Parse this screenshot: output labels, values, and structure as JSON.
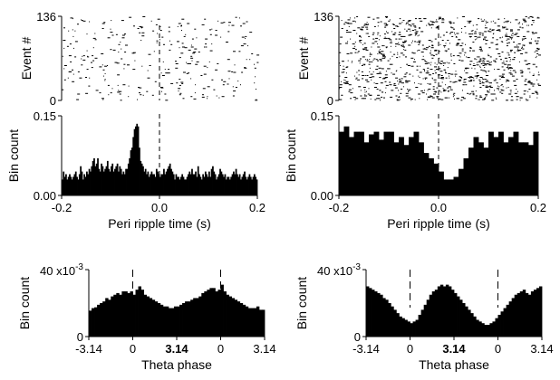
{
  "chart_data": [
    {
      "id": "raster_left",
      "type": "scatter",
      "ylabel": "Event #",
      "ylim": [
        0,
        136
      ],
      "xlim": [
        -0.2,
        0.2
      ],
      "yticks": [
        "0",
        "136"
      ],
      "marker": "vertical-tick",
      "event_marker_x": 0.0
    },
    {
      "id": "raster_right",
      "type": "scatter",
      "ylabel": "Event #",
      "ylim": [
        0,
        136
      ],
      "xlim": [
        -0.2,
        0.2
      ],
      "yticks": [
        "0",
        "136"
      ],
      "marker": "vertical-tick",
      "event_marker_x": 0.0
    },
    {
      "id": "psth_left",
      "type": "bar",
      "xlabel": "Peri ripple time (s)",
      "ylabel": "Bin count",
      "xlim": [
        -0.2,
        0.2
      ],
      "ylim": [
        0,
        0.15
      ],
      "xticks": [
        "-0.2",
        "0.0",
        "0.2"
      ],
      "yticks": [
        "0.00",
        "0.15"
      ],
      "bin_start": -0.2,
      "bin_width": 0.005,
      "event_marker_x": 0.0,
      "values": [
        0.03,
        0.045,
        0.035,
        0.04,
        0.03,
        0.035,
        0.04,
        0.035,
        0.03,
        0.035,
        0.04,
        0.045,
        0.035,
        0.03,
        0.04,
        0.055,
        0.045,
        0.03,
        0.04,
        0.035,
        0.045,
        0.04,
        0.05,
        0.045,
        0.055,
        0.065,
        0.07,
        0.055,
        0.06,
        0.07,
        0.05,
        0.045,
        0.06,
        0.055,
        0.045,
        0.05,
        0.055,
        0.065,
        0.05,
        0.045,
        0.055,
        0.06,
        0.045,
        0.05,
        0.055,
        0.06,
        0.045,
        0.055,
        0.05,
        0.04,
        0.045,
        0.04,
        0.05,
        0.05,
        0.06,
        0.07,
        0.085,
        0.09,
        0.11,
        0.125,
        0.13,
        0.135,
        0.13,
        0.09,
        0.065,
        0.06,
        0.055,
        0.045,
        0.05,
        0.04,
        0.045,
        0.035,
        0.04,
        0.045,
        0.04,
        0.04,
        0.035,
        0.05,
        0.045,
        0.04,
        0.035,
        0.04,
        0.04,
        0.05,
        0.04,
        0.045,
        0.05,
        0.055,
        0.06,
        0.05,
        0.045,
        0.04,
        0.03,
        0.04,
        0.035,
        0.035,
        0.03,
        0.035,
        0.04,
        0.035,
        0.03,
        0.03,
        0.035,
        0.04,
        0.045,
        0.04,
        0.05,
        0.04,
        0.04,
        0.045,
        0.035,
        0.055,
        0.04,
        0.035,
        0.03,
        0.04,
        0.035,
        0.045,
        0.04,
        0.035,
        0.045,
        0.035,
        0.05,
        0.055,
        0.045,
        0.04,
        0.03,
        0.035,
        0.04,
        0.05,
        0.045,
        0.04,
        0.035,
        0.04,
        0.03,
        0.035,
        0.035,
        0.03,
        0.035,
        0.04,
        0.045,
        0.04,
        0.05,
        0.04,
        0.035,
        0.04,
        0.03,
        0.035,
        0.04,
        0.045,
        0.035,
        0.03,
        0.035,
        0.04,
        0.035,
        0.03,
        0.035,
        0.04,
        0.035,
        0.03
      ]
    },
    {
      "id": "psth_right",
      "type": "bar",
      "xlabel": "Peri ripple time (s)",
      "ylabel": "Bin count",
      "xlim": [
        -0.2,
        0.2
      ],
      "ylim": [
        0,
        0.15
      ],
      "xticks": [
        "-0.2",
        "0.0",
        "0.2"
      ],
      "yticks": [
        "0.00",
        "0.15"
      ],
      "bin_start": -0.2,
      "bin_width": 0.01,
      "event_marker_x": 0.0,
      "values": [
        0.12,
        0.13,
        0.11,
        0.12,
        0.12,
        0.1,
        0.115,
        0.12,
        0.105,
        0.12,
        0.12,
        0.1,
        0.11,
        0.095,
        0.11,
        0.12,
        0.1,
        0.08,
        0.07,
        0.06,
        0.045,
        0.03,
        0.03,
        0.035,
        0.05,
        0.07,
        0.09,
        0.11,
        0.1,
        0.09,
        0.12,
        0.11,
        0.12,
        0.1,
        0.11,
        0.12,
        0.1,
        0.1,
        0.095,
        0.12
      ]
    },
    {
      "id": "theta_left",
      "type": "bar",
      "xlabel": "Theta phase",
      "ylabel": "Bin count",
      "ylim": [
        0,
        0.04
      ],
      "ytick_labels": [
        "0",
        "40 x10",
        "-3"
      ],
      "xticks": [
        "-3.14",
        "0",
        "3.14",
        "0",
        "3.14"
      ],
      "xlim": [
        -3.14,
        9.42
      ],
      "bin_width": 0.1963,
      "dashed_markers_x": [
        0,
        6.28
      ],
      "values": [
        0.0155,
        0.017,
        0.0175,
        0.019,
        0.02,
        0.021,
        0.023,
        0.022,
        0.024,
        0.025,
        0.026,
        0.025,
        0.027,
        0.027,
        0.026,
        0.027,
        0.025,
        0.028,
        0.03,
        0.028,
        0.025,
        0.024,
        0.023,
        0.022,
        0.021,
        0.02,
        0.019,
        0.018,
        0.018,
        0.017,
        0.017,
        0.018,
        0.018,
        0.019,
        0.02,
        0.021,
        0.021,
        0.022,
        0.023,
        0.023,
        0.024,
        0.026,
        0.027,
        0.028,
        0.029,
        0.029,
        0.027,
        0.028,
        0.031,
        0.027,
        0.025,
        0.024,
        0.023,
        0.022,
        0.021,
        0.02,
        0.019,
        0.018,
        0.017,
        0.017,
        0.017,
        0.018,
        0.016,
        0.016
      ]
    },
    {
      "id": "theta_right",
      "type": "bar",
      "xlabel": "Theta phase",
      "ylabel": "Bin count",
      "ylim": [
        0,
        0.04
      ],
      "ytick_labels": [
        "0",
        "40 x10",
        "-3"
      ],
      "xticks": [
        "-3.14",
        "0",
        "3.14",
        "0",
        "3.14"
      ],
      "xlim": [
        -3.14,
        9.42
      ],
      "bin_width": 0.1963,
      "dashed_markers_x": [
        0,
        6.28
      ],
      "values": [
        0.03,
        0.029,
        0.028,
        0.027,
        0.026,
        0.025,
        0.023,
        0.022,
        0.02,
        0.018,
        0.016,
        0.014,
        0.012,
        0.011,
        0.01,
        0.009,
        0.008,
        0.009,
        0.01,
        0.013,
        0.016,
        0.019,
        0.022,
        0.025,
        0.027,
        0.028,
        0.03,
        0.031,
        0.03,
        0.031,
        0.03,
        0.028,
        0.026,
        0.024,
        0.022,
        0.02,
        0.018,
        0.016,
        0.014,
        0.012,
        0.01,
        0.009,
        0.008,
        0.007,
        0.007,
        0.008,
        0.009,
        0.011,
        0.013,
        0.015,
        0.017,
        0.019,
        0.021,
        0.023,
        0.025,
        0.026,
        0.027,
        0.028,
        0.026,
        0.025,
        0.027,
        0.028,
        0.029,
        0.03
      ]
    }
  ]
}
